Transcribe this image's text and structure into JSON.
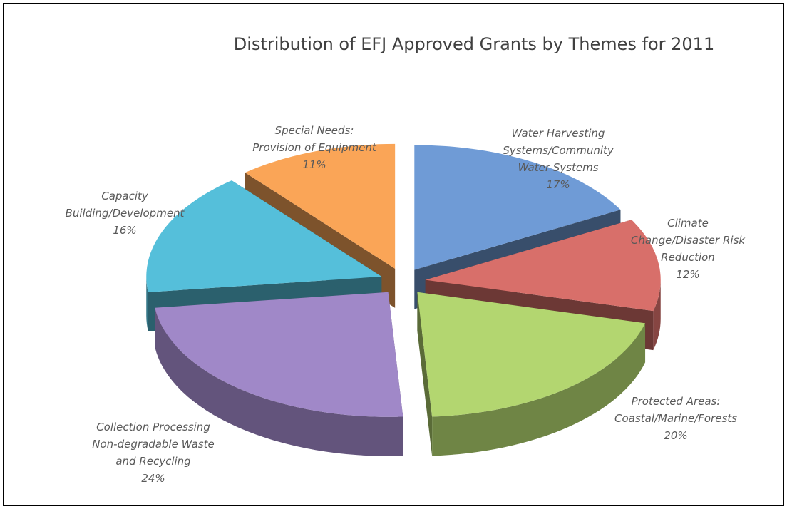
{
  "chart_data": {
    "type": "pie",
    "style": "3d-exploded",
    "title": "Distribution of EFJ Approved Grants by Themes for 2011",
    "unit": "%",
    "slices": [
      {
        "label_lines": [
          "Water Harvesting",
          "Systems/Community",
          "Water Systems"
        ],
        "value": 17,
        "value_label": "17%",
        "color": "#6F9BD6"
      },
      {
        "label_lines": [
          "Climate",
          "Change/Disaster Risk",
          "Reduction"
        ],
        "value": 12,
        "value_label": "12%",
        "color": "#D86F6A"
      },
      {
        "label_lines": [
          "Protected Areas:",
          "Coastal/Marine/Forests"
        ],
        "value": 20,
        "value_label": "20%",
        "color": "#B3D670"
      },
      {
        "label_lines": [
          "Collection Processing",
          "Non-degradable Waste",
          "and Recycling"
        ],
        "value": 24,
        "value_label": "24%",
        "color": "#A088C8"
      },
      {
        "label_lines": [
          "Capacity",
          "Building/Development"
        ],
        "value": 16,
        "value_label": "16%",
        "color": "#55BFDA"
      },
      {
        "label_lines": [
          "Special Needs:",
          "Provision of Equipment"
        ],
        "value": 11,
        "value_label": "11%",
        "color": "#FAA557"
      }
    ]
  }
}
